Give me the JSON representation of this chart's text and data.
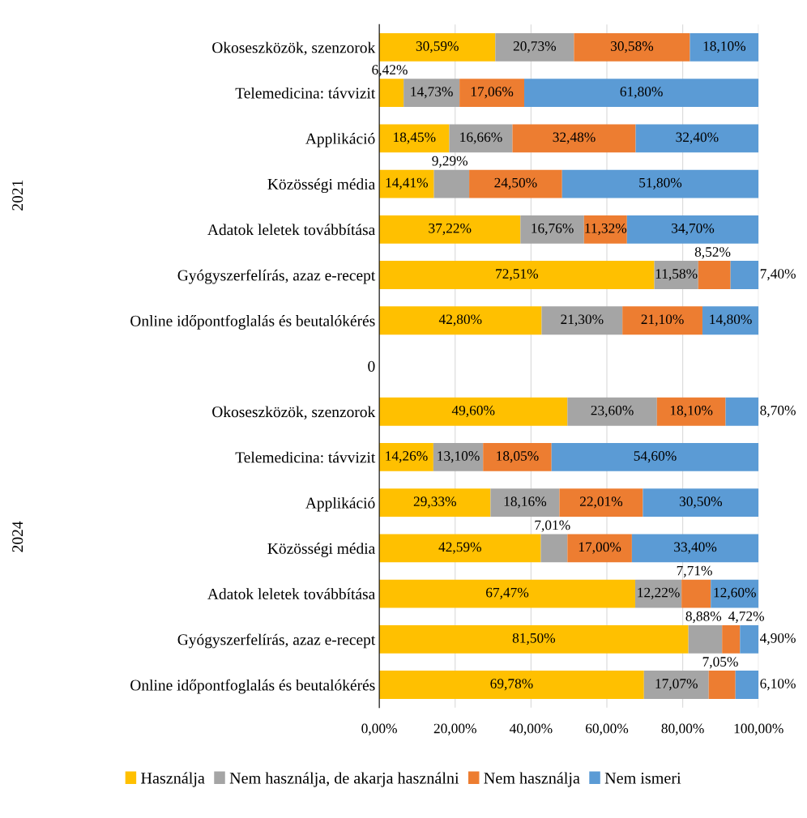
{
  "chart_data": {
    "type": "bar",
    "orientation": "horizontal",
    "stacked": true,
    "categories": [
      "Okoseszközök, szenzorok",
      "Telemedicina: távvizit",
      "Applikáció",
      "Közösségi média",
      "Adatok leletek továbbítása",
      "Gyógyszerfelírás, azaz e-recept",
      "Online időpontfoglalás és beutalókérés",
      "0",
      "Okoseszközök, szenzorok",
      "Telemedicina: távvizit",
      "Applikáció",
      "Közösségi média",
      "Adatok leletek továbbítása",
      "Gyógyszerfelírás, azaz e-recept",
      "Online időpontfoglalás és beutalókérés"
    ],
    "series": [
      {
        "name": "Használja",
        "color": "#ffc000",
        "values": [
          30.59,
          6.42,
          18.45,
          14.41,
          37.22,
          72.51,
          42.8,
          null,
          49.6,
          14.26,
          29.33,
          42.59,
          67.47,
          81.5,
          69.78
        ],
        "value_labels": [
          "30,59%",
          "6,42%",
          "18,45%",
          "14,41%",
          "37,22%",
          "72,51%",
          "42,80%",
          null,
          "49,60%",
          "14,26%",
          "29,33%",
          "42,59%",
          "67,47%",
          "81,50%",
          "69,78%"
        ]
      },
      {
        "name": "Nem használja, de akarja használni",
        "color": "#a5a5a5",
        "values": [
          20.73,
          14.73,
          16.66,
          9.29,
          16.76,
          11.58,
          21.3,
          null,
          23.6,
          13.1,
          18.16,
          7.01,
          12.22,
          8.88,
          17.07
        ],
        "value_labels": [
          "20,73%",
          "14,73%",
          "16,66%",
          "9,29%",
          "16,76%",
          "11,58%",
          "21,30%",
          null,
          "23,60%",
          "13,10%",
          "18,16%",
          "7,01%",
          "12,22%",
          "8,88%",
          "17,07%"
        ]
      },
      {
        "name": "Nem használja",
        "color": "#ed7d31",
        "values": [
          30.58,
          17.06,
          32.48,
          24.5,
          11.32,
          8.52,
          21.1,
          null,
          18.1,
          18.05,
          22.01,
          17.0,
          7.71,
          4.72,
          7.05
        ],
        "value_labels": [
          "30,58%",
          "17,06%",
          "32,48%",
          "24,50%",
          "11,32%",
          "8,52%",
          "21,10%",
          null,
          "18,10%",
          "18,05%",
          "22,01%",
          "17,00%",
          "7,71%",
          "4,72%",
          "7,05%"
        ]
      },
      {
        "name": "Nem ismeri",
        "color": "#5b9bd5",
        "values": [
          18.1,
          61.8,
          32.4,
          51.8,
          34.7,
          7.4,
          14.8,
          null,
          8.7,
          54.6,
          30.5,
          33.4,
          12.6,
          4.9,
          6.1
        ],
        "value_labels": [
          "18,10%",
          "61,80%",
          "32,40%",
          "51,80%",
          "34,70%",
          "7,40%",
          "14,80%",
          null,
          "8,70%",
          "54,60%",
          "30,50%",
          "33,40%",
          "12,60%",
          "4,90%",
          "6,10%"
        ]
      }
    ],
    "xlim": [
      0,
      100
    ],
    "xticks": [
      {
        "value": 0,
        "label": "0,00%"
      },
      {
        "value": 20,
        "label": "20,00%"
      },
      {
        "value": 40,
        "label": "40,00%"
      },
      {
        "value": 60,
        "label": "60,00%"
      },
      {
        "value": 80,
        "label": "80,00%"
      },
      {
        "value": 100,
        "label": "100,00%"
      }
    ],
    "grid": "x",
    "legend": "bottom",
    "annotations": [
      "2021",
      "2024"
    ]
  }
}
